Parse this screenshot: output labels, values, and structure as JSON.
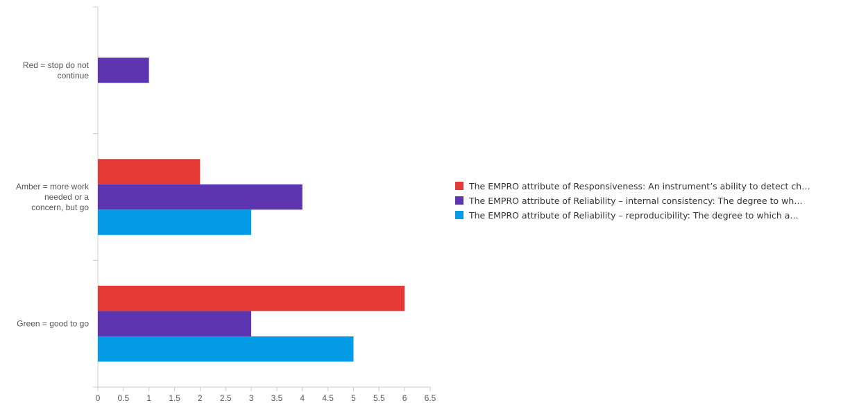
{
  "chart_data": {
    "type": "bar",
    "orientation": "horizontal",
    "categories": [
      [
        "Red = stop do not",
        "continue"
      ],
      [
        "Amber = more work",
        "needed or a",
        "concern, but go"
      ],
      [
        "Green = good to go"
      ]
    ],
    "series": [
      {
        "name": "The EMPRO attribute of Responsiveness: An instrument’s ability to detect ch…",
        "color": "#e53935",
        "values": [
          0,
          2,
          6
        ]
      },
      {
        "name": "The EMPRO attribute of Reliability – internal consistency: The degree to wh…",
        "color": "#5e35b1",
        "values": [
          1,
          4,
          3
        ]
      },
      {
        "name": "The EMPRO attribute of Reliability – reproducibility: The degree to which a…",
        "color": "#039be5",
        "values": [
          0,
          3,
          5
        ]
      }
    ],
    "xlim": [
      0,
      6.5
    ],
    "xticks": [
      "0",
      "0.5",
      "1",
      "1.5",
      "2",
      "2.5",
      "3",
      "3.5",
      "4",
      "4.5",
      "5",
      "5.5",
      "6",
      "6.5"
    ],
    "grid": false,
    "legend": "right"
  }
}
